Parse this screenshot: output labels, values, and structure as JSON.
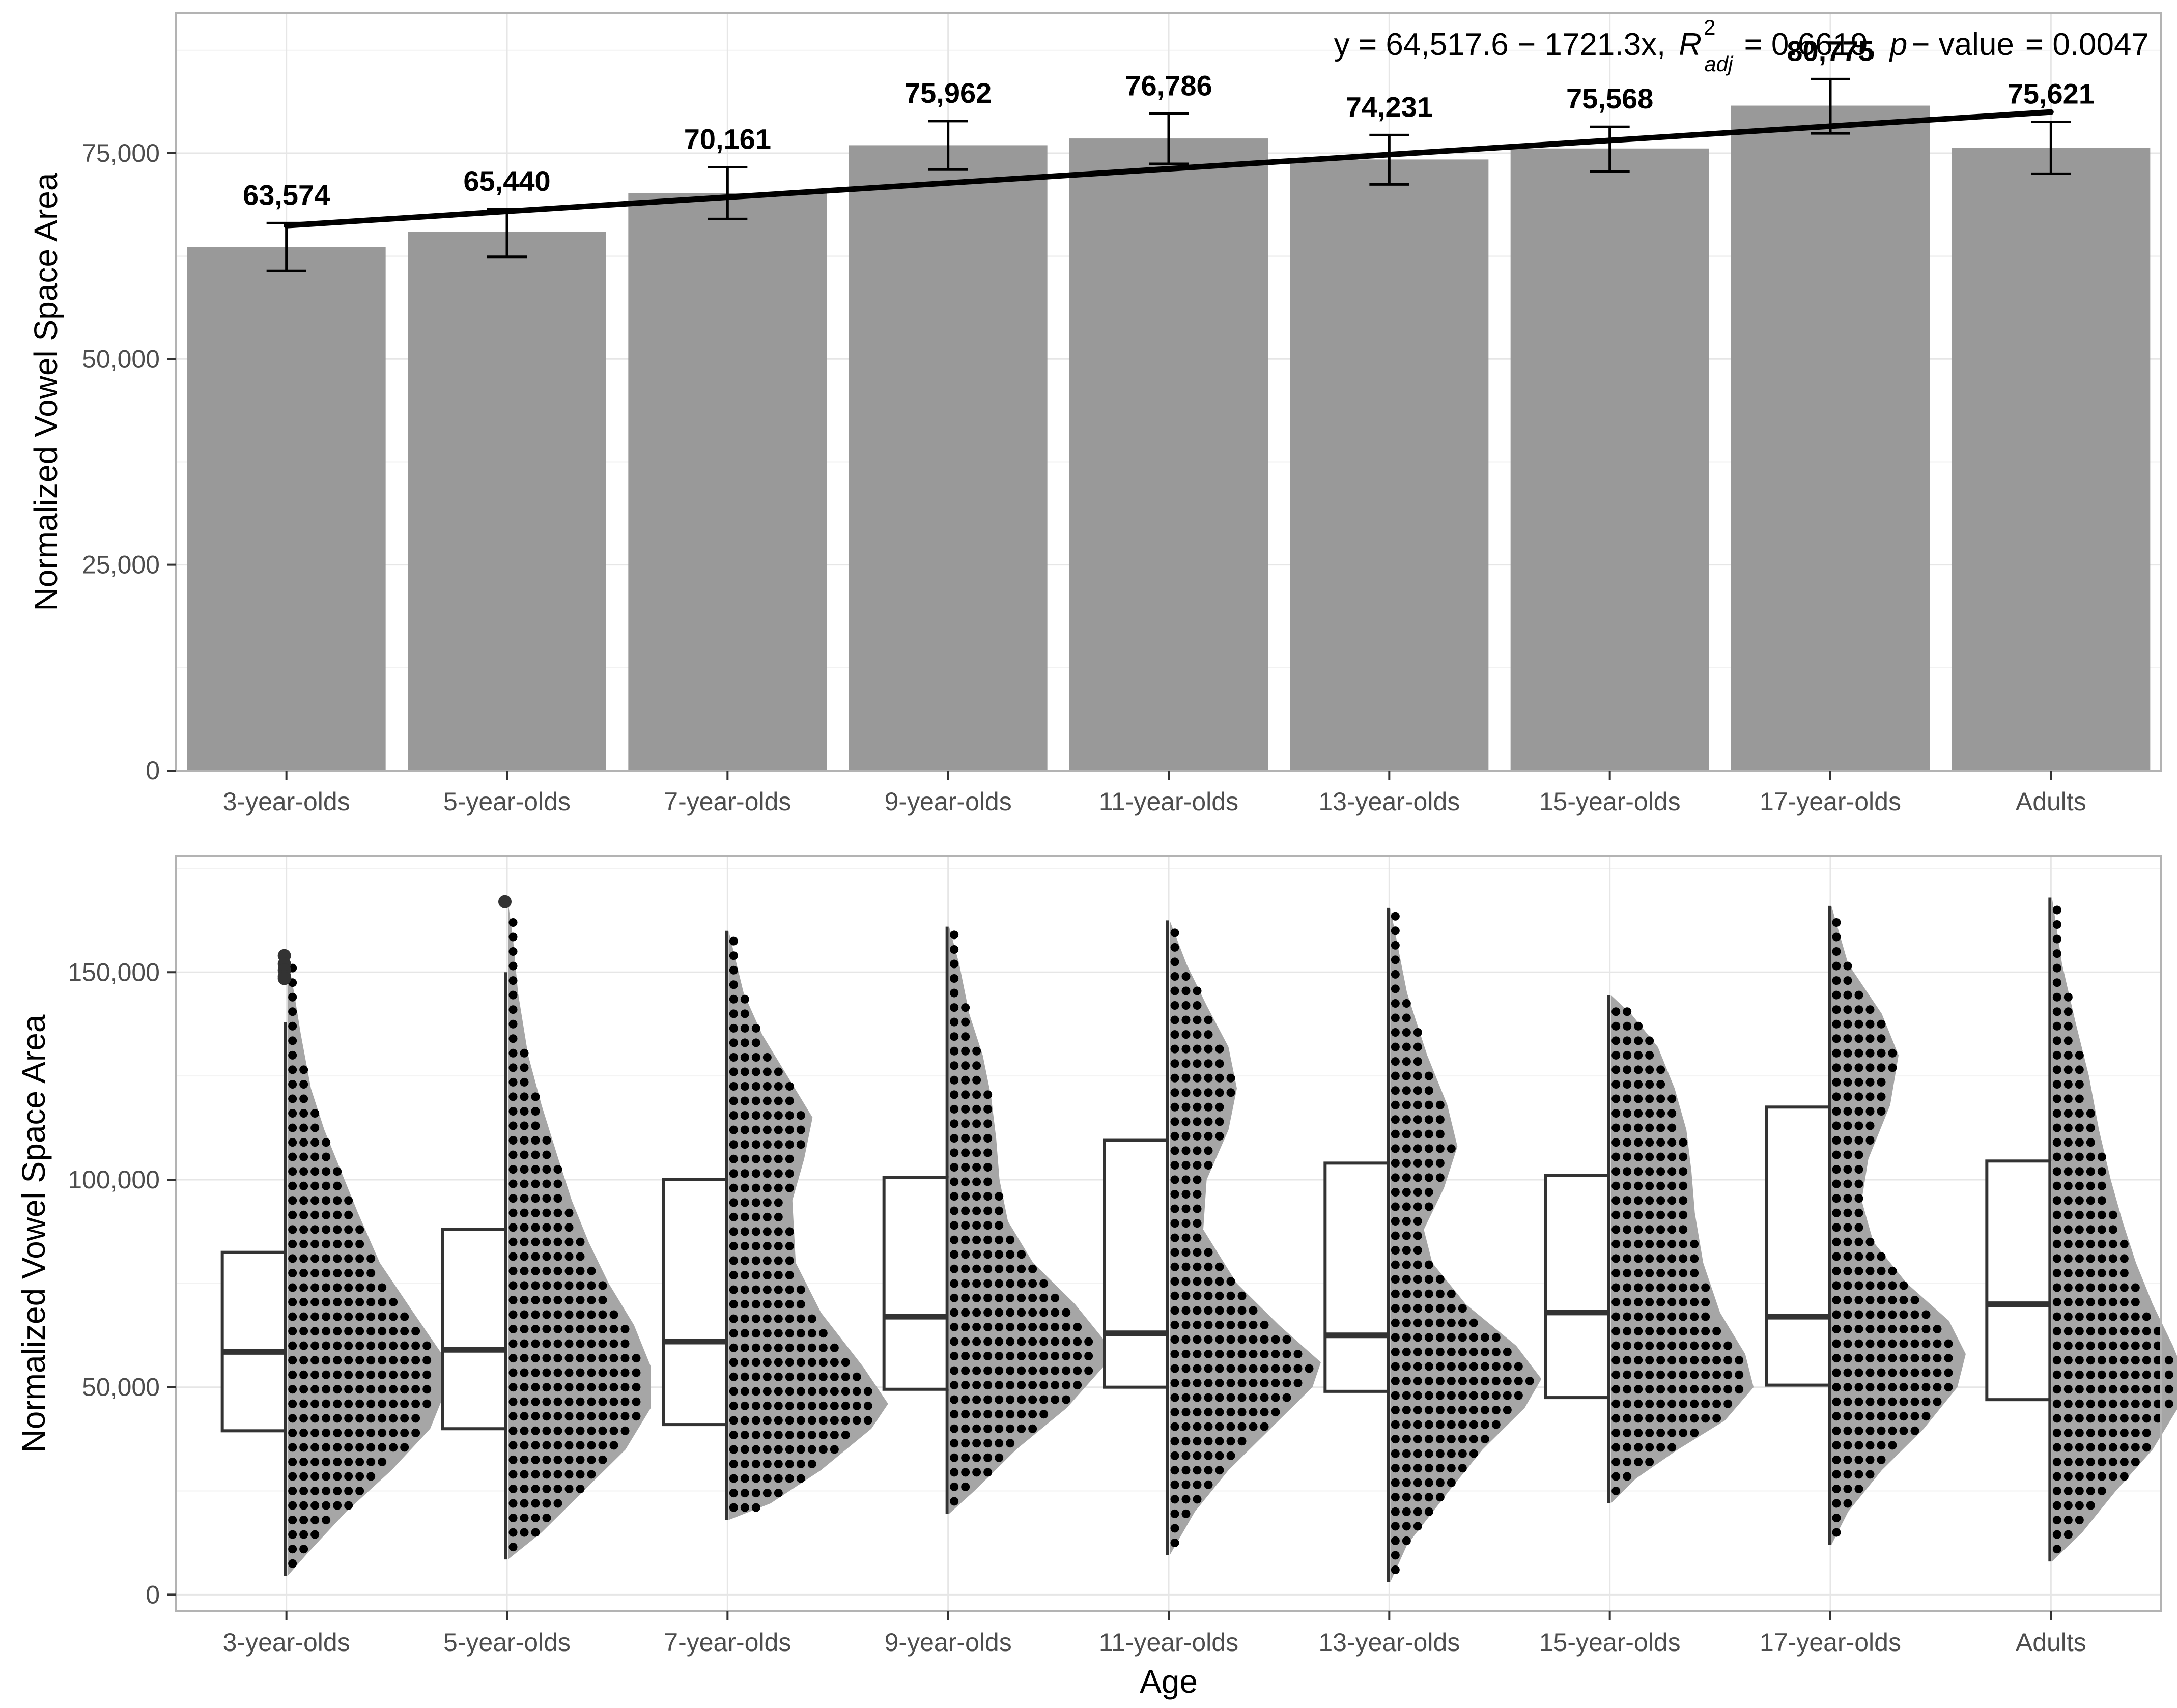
{
  "chart_data": [
    {
      "type": "bar",
      "panel": "top",
      "categories": [
        "3-year-olds",
        "5-year-olds",
        "7-year-olds",
        "9-year-olds",
        "11-year-olds",
        "13-year-olds",
        "15-year-olds",
        "17-year-olds",
        "Adults"
      ],
      "values": [
        63574,
        65440,
        70161,
        75962,
        76786,
        74231,
        75568,
        80775,
        75621
      ],
      "value_labels": [
        "63,574",
        "65,440",
        "70,161",
        "75,962",
        "76,786",
        "74,231",
        "75,568",
        "80,775",
        "75,621"
      ],
      "error_low": [
        60700,
        62400,
        67000,
        73000,
        73700,
        71200,
        72800,
        77400,
        72500
      ],
      "error_high": [
        66500,
        68200,
        73300,
        78900,
        79800,
        77200,
        78200,
        84000,
        78800
      ],
      "trend_line": {
        "start": 66200,
        "end": 80000
      },
      "annotation": {
        "eq": "y = 64,517.6 − 1721.3x,",
        "r": "R",
        "r_sup": "2",
        "r_sub": "adj",
        "r_val": "= 0.6619,",
        "p": "p",
        "p_rest": "− value",
        "p_val": "= 0.0047"
      },
      "ylabel": "Normalized Vowel Space Area",
      "xlabel": "",
      "ylim": [
        0,
        92000
      ],
      "yticks": [
        0,
        25000,
        50000,
        75000
      ],
      "ytick_labels": [
        "0",
        "25,000",
        "50,000",
        "75,000"
      ],
      "bar_color": "#999999",
      "grid": true
    },
    {
      "type": "boxplot",
      "panel": "bottom",
      "categories": [
        "3-year-olds",
        "5-year-olds",
        "7-year-olds",
        "9-year-olds",
        "11-year-olds",
        "13-year-olds",
        "15-year-olds",
        "17-year-olds",
        "Adults"
      ],
      "boxes": [
        {
          "min": 4500,
          "q1": 39500,
          "median": 58500,
          "q3": 82500,
          "max": 138000
        },
        {
          "min": 8500,
          "q1": 40000,
          "median": 59000,
          "q3": 88000,
          "max": 150000
        },
        {
          "min": 18000,
          "q1": 41000,
          "median": 61000,
          "q3": 100000,
          "max": 160000
        },
        {
          "min": 19500,
          "q1": 49500,
          "median": 67000,
          "q3": 100500,
          "max": 161000
        },
        {
          "min": 9500,
          "q1": 50000,
          "median": 63000,
          "q3": 109500,
          "max": 162500
        },
        {
          "min": 3000,
          "q1": 49000,
          "median": 62500,
          "q3": 104000,
          "max": 165500
        },
        {
          "min": 22000,
          "q1": 47500,
          "median": 68000,
          "q3": 101000,
          "max": 144500
        },
        {
          "min": 12000,
          "q1": 50500,
          "median": 67000,
          "q3": 117500,
          "max": 166000
        },
        {
          "min": 8000,
          "q1": 47000,
          "median": 70000,
          "q3": 104500,
          "max": 168000
        }
      ],
      "outliers": [
        {
          "group": 0,
          "values": [
            154000,
            152000,
            150500,
            149000,
            148500
          ]
        },
        {
          "group": 1,
          "values": [
            167000
          ]
        }
      ],
      "density_profiles": [
        [
          [
            4500,
            0
          ],
          [
            10000,
            0.12
          ],
          [
            20000,
            0.35
          ],
          [
            30000,
            0.62
          ],
          [
            40000,
            0.85
          ],
          [
            50000,
            0.95
          ],
          [
            58000,
            0.92
          ],
          [
            68000,
            0.75
          ],
          [
            80000,
            0.55
          ],
          [
            92000,
            0.42
          ],
          [
            102000,
            0.32
          ],
          [
            112000,
            0.22
          ],
          [
            122000,
            0.14
          ],
          [
            135000,
            0.08
          ],
          [
            145000,
            0.04
          ],
          [
            154000,
            0
          ]
        ],
        [
          [
            8500,
            0
          ],
          [
            15000,
            0.2
          ],
          [
            25000,
            0.45
          ],
          [
            35000,
            0.7
          ],
          [
            45000,
            0.85
          ],
          [
            55000,
            0.85
          ],
          [
            65000,
            0.75
          ],
          [
            75000,
            0.6
          ],
          [
            85000,
            0.48
          ],
          [
            95000,
            0.38
          ],
          [
            105000,
            0.3
          ],
          [
            118000,
            0.2
          ],
          [
            130000,
            0.12
          ],
          [
            145000,
            0.06
          ],
          [
            158000,
            0.03
          ],
          [
            167000,
            0
          ]
        ],
        [
          [
            18000,
            0
          ],
          [
            22000,
            0.25
          ],
          [
            30000,
            0.55
          ],
          [
            40000,
            0.85
          ],
          [
            46000,
            0.95
          ],
          [
            55000,
            0.8
          ],
          [
            68000,
            0.55
          ],
          [
            80000,
            0.4
          ],
          [
            95000,
            0.38
          ],
          [
            105000,
            0.45
          ],
          [
            115000,
            0.5
          ],
          [
            125000,
            0.35
          ],
          [
            135000,
            0.2
          ],
          [
            145000,
            0.09
          ],
          [
            155000,
            0.03
          ],
          [
            160000,
            0
          ]
        ],
        [
          [
            19500,
            0
          ],
          [
            25000,
            0.15
          ],
          [
            35000,
            0.4
          ],
          [
            45000,
            0.7
          ],
          [
            55000,
            0.92
          ],
          [
            60000,
            0.95
          ],
          [
            70000,
            0.75
          ],
          [
            80000,
            0.5
          ],
          [
            90000,
            0.35
          ],
          [
            100000,
            0.3
          ],
          [
            110000,
            0.28
          ],
          [
            120000,
            0.25
          ],
          [
            130000,
            0.2
          ],
          [
            140000,
            0.12
          ],
          [
            152000,
            0.06
          ],
          [
            161000,
            0
          ]
        ],
        [
          [
            9500,
            0
          ],
          [
            20000,
            0.15
          ],
          [
            30000,
            0.35
          ],
          [
            40000,
            0.6
          ],
          [
            50000,
            0.85
          ],
          [
            56000,
            0.9
          ],
          [
            65000,
            0.65
          ],
          [
            75000,
            0.4
          ],
          [
            88000,
            0.2
          ],
          [
            100000,
            0.22
          ],
          [
            112000,
            0.35
          ],
          [
            122000,
            0.4
          ],
          [
            132000,
            0.35
          ],
          [
            142000,
            0.22
          ],
          [
            152000,
            0.1
          ],
          [
            162500,
            0
          ]
        ],
        [
          [
            3000,
            0
          ],
          [
            12000,
            0.1
          ],
          [
            25000,
            0.35
          ],
          [
            35000,
            0.55
          ],
          [
            45000,
            0.8
          ],
          [
            52000,
            0.9
          ],
          [
            60000,
            0.75
          ],
          [
            70000,
            0.45
          ],
          [
            80000,
            0.25
          ],
          [
            88000,
            0.2
          ],
          [
            98000,
            0.32
          ],
          [
            108000,
            0.4
          ],
          [
            118000,
            0.34
          ],
          [
            130000,
            0.22
          ],
          [
            145000,
            0.1
          ],
          [
            165500,
            0
          ]
        ],
        [
          [
            22000,
            0
          ],
          [
            28000,
            0.15
          ],
          [
            35000,
            0.4
          ],
          [
            42000,
            0.68
          ],
          [
            50000,
            0.85
          ],
          [
            58000,
            0.8
          ],
          [
            68000,
            0.65
          ],
          [
            80000,
            0.55
          ],
          [
            92000,
            0.5
          ],
          [
            102000,
            0.48
          ],
          [
            112000,
            0.45
          ],
          [
            122000,
            0.38
          ],
          [
            132000,
            0.28
          ],
          [
            140000,
            0.12
          ],
          [
            144500,
            0
          ]
        ],
        [
          [
            12000,
            0
          ],
          [
            20000,
            0.1
          ],
          [
            30000,
            0.3
          ],
          [
            40000,
            0.55
          ],
          [
            50000,
            0.75
          ],
          [
            58000,
            0.8
          ],
          [
            66000,
            0.7
          ],
          [
            75000,
            0.45
          ],
          [
            85000,
            0.25
          ],
          [
            95000,
            0.18
          ],
          [
            105000,
            0.22
          ],
          [
            118000,
            0.35
          ],
          [
            130000,
            0.4
          ],
          [
            140000,
            0.3
          ],
          [
            152000,
            0.1
          ],
          [
            166000,
            0
          ]
        ],
        [
          [
            8000,
            0
          ],
          [
            15000,
            0.18
          ],
          [
            25000,
            0.38
          ],
          [
            35000,
            0.6
          ],
          [
            45000,
            0.75
          ],
          [
            52000,
            0.8
          ],
          [
            60000,
            0.72
          ],
          [
            70000,
            0.6
          ],
          [
            80000,
            0.5
          ],
          [
            90000,
            0.42
          ],
          [
            100000,
            0.35
          ],
          [
            112000,
            0.28
          ],
          [
            125000,
            0.22
          ],
          [
            138000,
            0.14
          ],
          [
            152000,
            0.06
          ],
          [
            168000,
            0
          ]
        ]
      ],
      "ylabel": "Normalized Vowel Space Area",
      "xlabel": "Age",
      "ylim": [
        -4000,
        178000
      ],
      "yticks": [
        0,
        50000,
        100000,
        150000
      ],
      "ytick_labels": [
        "0",
        "50,000",
        "100,000",
        "150,000"
      ],
      "violin_color": "#a6a6a6",
      "grid": true
    }
  ]
}
